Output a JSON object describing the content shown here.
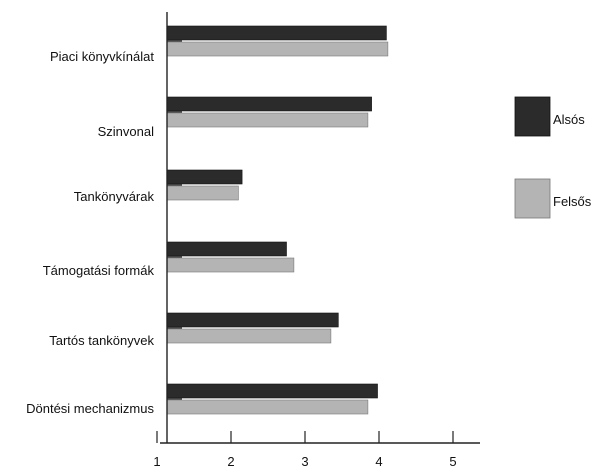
{
  "chart_data": {
    "type": "bar",
    "orientation": "horizontal",
    "categories": [
      "Piaci könyvkínálat",
      "Szinvonal",
      "Tankönyvárak",
      "Támogatási formák",
      "Tartós tankönyvek",
      "Döntési mechanizmus"
    ],
    "series": [
      {
        "name": "Alsós",
        "values": [
          4.1,
          3.9,
          2.15,
          2.75,
          3.45,
          3.98
        ]
      },
      {
        "name": "Felsős",
        "values": [
          4.12,
          3.85,
          2.1,
          2.85,
          3.35,
          3.85
        ]
      }
    ],
    "xlim": [
      1,
      5.3
    ],
    "xticks": [
      1,
      2,
      3,
      4,
      5
    ],
    "xlabel": "",
    "ylabel": "",
    "legend_position": "right",
    "colors": {
      "Alsós": "#2b2b2b",
      "Felsős": "#b4b4b4"
    }
  }
}
